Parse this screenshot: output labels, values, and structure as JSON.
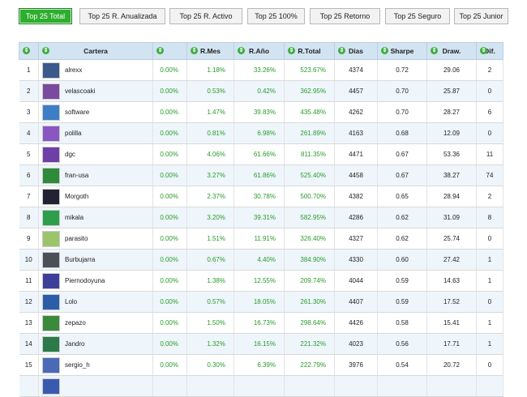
{
  "tabs": [
    {
      "label": "Top 25 Total",
      "active": true
    },
    {
      "label": "Top 25 R. Anualizada",
      "active": false
    },
    {
      "label": "Top 25 R. Activo",
      "active": false
    },
    {
      "label": "Top 25 100%",
      "active": false
    },
    {
      "label": "Top 25 Retorno",
      "active": false
    },
    {
      "label": "Top 25 Seguro",
      "active": false
    },
    {
      "label": "Top 25 Junior",
      "active": false
    }
  ],
  "table": {
    "headers": [
      "",
      "Cartera",
      "",
      "R.Mes",
      "R.Año",
      "R.Total",
      "Días",
      "Sharpe",
      "Draw.",
      "Dif."
    ],
    "sort_icon": "sort-icon",
    "rows": [
      {
        "rank": "1",
        "name": "alrexx",
        "c1": "0.00%",
        "mes": "1.18%",
        "ano": "33.26%",
        "total": "523.67%",
        "dias": "4374",
        "sharpe": "0.72",
        "draw": "29.06",
        "dif": "2",
        "avatar_color": "#3b5a8c"
      },
      {
        "rank": "2",
        "name": "velascoaki",
        "c1": "0.00%",
        "mes": "0.53%",
        "ano": "0.42%",
        "total": "362.95%",
        "dias": "4457",
        "sharpe": "0.70",
        "draw": "25.87",
        "dif": "0",
        "avatar_color": "#7a4a9e"
      },
      {
        "rank": "3",
        "name": "software",
        "c1": "0.00%",
        "mes": "1.47%",
        "ano": "39.83%",
        "total": "435.48%",
        "dias": "4262",
        "sharpe": "0.70",
        "draw": "28.27",
        "dif": "6",
        "avatar_color": "#3c7fc8"
      },
      {
        "rank": "4",
        "name": "polilla",
        "c1": "0.00%",
        "mes": "0.81%",
        "ano": "6.98%",
        "total": "261.89%",
        "dias": "4163",
        "sharpe": "0.68",
        "draw": "12.09",
        "dif": "0",
        "avatar_color": "#8a56c2"
      },
      {
        "rank": "5",
        "name": "dgc",
        "c1": "0.00%",
        "mes": "4.06%",
        "ano": "61.66%",
        "total": "811.35%",
        "dias": "4471",
        "sharpe": "0.67",
        "draw": "53.36",
        "dif": "11",
        "avatar_color": "#6f3fa8"
      },
      {
        "rank": "6",
        "name": "fran-usa",
        "c1": "0.00%",
        "mes": "3.27%",
        "ano": "61.86%",
        "total": "525.40%",
        "dias": "4458",
        "sharpe": "0.67",
        "draw": "38.27",
        "dif": "74",
        "avatar_color": "#2f8a3a"
      },
      {
        "rank": "7",
        "name": "Morgoth",
        "c1": "0.00%",
        "mes": "2.37%",
        "ano": "30.78%",
        "total": "500.70%",
        "dias": "4382",
        "sharpe": "0.65",
        "draw": "28.94",
        "dif": "2",
        "avatar_color": "#222233"
      },
      {
        "rank": "8",
        "name": "mikala",
        "c1": "0.00%",
        "mes": "3.20%",
        "ano": "39.31%",
        "total": "582.95%",
        "dias": "4286",
        "sharpe": "0.62",
        "draw": "31.09",
        "dif": "8",
        "avatar_color": "#2e9e4a"
      },
      {
        "rank": "9",
        "name": "parasito",
        "c1": "0.00%",
        "mes": "1.51%",
        "ano": "11.91%",
        "total": "326.40%",
        "dias": "4327",
        "sharpe": "0.62",
        "draw": "25.74",
        "dif": "0",
        "avatar_color": "#9cc46a"
      },
      {
        "rank": "10",
        "name": "Burbujarra",
        "c1": "0.00%",
        "mes": "0.67%",
        "ano": "4.40%",
        "total": "384.90%",
        "dias": "4330",
        "sharpe": "0.60",
        "draw": "27.42",
        "dif": "1",
        "avatar_color": "#4a5058"
      },
      {
        "rank": "11",
        "name": "Piernodoyuna",
        "c1": "0.00%",
        "mes": "1.38%",
        "ano": "12.55%",
        "total": "209.74%",
        "dias": "4044",
        "sharpe": "0.59",
        "draw": "14.63",
        "dif": "1",
        "avatar_color": "#3b3f9a"
      },
      {
        "rank": "12",
        "name": "Lolo",
        "c1": "0.00%",
        "mes": "0.57%",
        "ano": "18.05%",
        "total": "261.30%",
        "dias": "4407",
        "sharpe": "0.59",
        "draw": "17.52",
        "dif": "0",
        "avatar_color": "#2a5ea8"
      },
      {
        "rank": "13",
        "name": "zepazo",
        "c1": "0.00%",
        "mes": "1.50%",
        "ano": "16.73%",
        "total": "298.64%",
        "dias": "4426",
        "sharpe": "0.58",
        "draw": "15.41",
        "dif": "1",
        "avatar_color": "#3a8a3a"
      },
      {
        "rank": "14",
        "name": "Jandro",
        "c1": "0.00%",
        "mes": "1.32%",
        "ano": "16.15%",
        "total": "221.32%",
        "dias": "4023",
        "sharpe": "0.56",
        "draw": "17.71",
        "dif": "1",
        "avatar_color": "#2a7a4a"
      },
      {
        "rank": "15",
        "name": "sergio_h",
        "c1": "0.00%",
        "mes": "0.30%",
        "ano": "6.39%",
        "total": "222.79%",
        "dias": "3976",
        "sharpe": "0.54",
        "draw": "20.72",
        "dif": "0",
        "avatar_color": "#4a6ab8"
      },
      {
        "rank": "",
        "name": "",
        "c1": "",
        "mes": "",
        "ano": "",
        "total": "",
        "dias": "",
        "sharpe": "",
        "draw": "",
        "dif": "",
        "avatar_color": "#3a5ab0"
      }
    ]
  },
  "colors": {
    "accent": "#2eae2e",
    "header_bg": "#d2e4f2",
    "alt_row": "#eef6fc",
    "positive": "#2a9a2a"
  }
}
